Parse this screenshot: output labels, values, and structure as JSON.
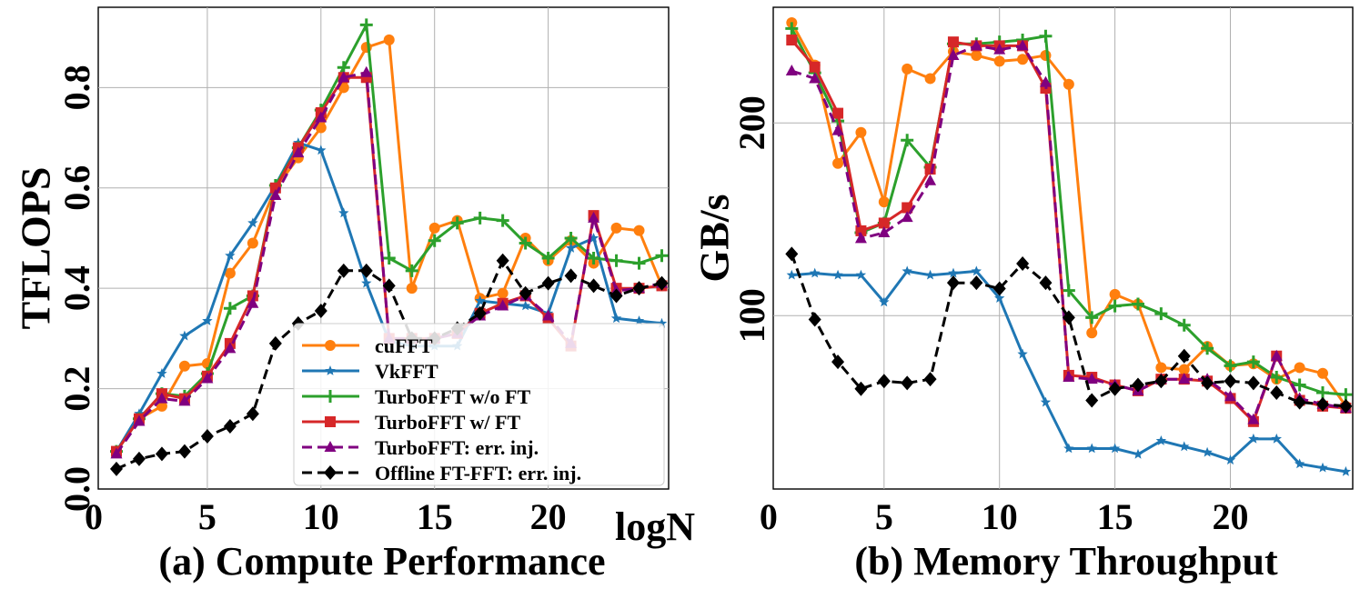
{
  "chart_data": [
    {
      "type": "line",
      "panel": "a",
      "caption": "(a) Compute Performance",
      "xlabel": "logN",
      "ylabel": "TFLOPS",
      "xlim": [
        0.2,
        25.3
      ],
      "ylim": [
        0.0,
        0.96
      ],
      "xticks": [
        0,
        5,
        10,
        15,
        20
      ],
      "yticks": [
        0.0,
        0.2,
        0.4,
        0.6,
        0.8
      ],
      "ytick_labels": [
        "0.0",
        "0.2",
        "0.4",
        "0.6",
        "0.8"
      ],
      "grid": true,
      "legend_position": "lower-right",
      "x": [
        1,
        2,
        3,
        4,
        5,
        6,
        7,
        8,
        9,
        10,
        11,
        12,
        13,
        14,
        15,
        16,
        17,
        18,
        19,
        20,
        21,
        22,
        23,
        24,
        25
      ],
      "series": [
        {
          "name": "cuFFT",
          "key": "cufft",
          "values": [
            0.075,
            0.14,
            0.165,
            0.245,
            0.25,
            0.43,
            0.49,
            0.6,
            0.66,
            0.72,
            0.8,
            0.88,
            0.895,
            0.4,
            0.52,
            0.535,
            0.38,
            0.39,
            0.5,
            0.455,
            0.495,
            0.45,
            0.52,
            0.515,
            0.405
          ]
        },
        {
          "name": "VkFFT",
          "key": "vkfft",
          "values": [
            0.075,
            0.15,
            0.23,
            0.305,
            0.335,
            0.465,
            0.53,
            0.605,
            0.69,
            0.675,
            0.55,
            0.41,
            0.295,
            0.285,
            0.285,
            0.285,
            0.375,
            0.37,
            0.365,
            0.35,
            0.48,
            0.5,
            0.34,
            0.335,
            0.33
          ]
        },
        {
          "name": "TurboFFT w/o FT",
          "key": "turbo_noft",
          "values": [
            0.075,
            0.14,
            0.19,
            0.185,
            0.23,
            0.36,
            0.385,
            0.605,
            0.68,
            0.755,
            0.84,
            0.925,
            0.46,
            0.435,
            0.495,
            0.53,
            0.54,
            0.535,
            0.49,
            0.46,
            0.5,
            0.46,
            0.455,
            0.45,
            0.465
          ]
        },
        {
          "name": "TurboFFT w/ FT",
          "key": "turbo_ft",
          "values": [
            0.075,
            0.14,
            0.19,
            0.18,
            0.225,
            0.29,
            0.385,
            0.6,
            0.68,
            0.75,
            0.82,
            0.82,
            0.3,
            0.3,
            0.3,
            0.31,
            0.35,
            0.37,
            0.385,
            0.34,
            0.285,
            0.545,
            0.4,
            0.4,
            0.405
          ]
        },
        {
          "name": "TurboFFT: err. inj.",
          "key": "turbo_inj",
          "values": [
            0.07,
            0.135,
            0.18,
            0.175,
            0.22,
            0.28,
            0.37,
            0.585,
            0.67,
            0.74,
            0.82,
            0.83,
            0.3,
            0.3,
            0.3,
            0.31,
            0.345,
            0.365,
            0.385,
            0.345,
            0.29,
            0.54,
            0.395,
            0.4,
            0.41
          ]
        },
        {
          "name": "Offline FT-FFT: err. inj.",
          "key": "offline_inj",
          "values": [
            0.04,
            0.06,
            0.07,
            0.075,
            0.105,
            0.125,
            0.15,
            0.29,
            0.33,
            0.355,
            0.435,
            0.435,
            0.405,
            0.3,
            0.3,
            0.32,
            0.35,
            0.455,
            0.39,
            0.41,
            0.425,
            0.405,
            0.385,
            0.4,
            0.41
          ]
        }
      ]
    },
    {
      "type": "line",
      "panel": "b",
      "caption": "(b) Memory Throughput",
      "xlabel": "",
      "ylabel": "GB/s",
      "xlim": [
        0.2,
        25.3
      ],
      "ylim": [
        10,
        260
      ],
      "xticks": [
        0,
        5,
        10,
        15,
        20
      ],
      "yticks": [
        100,
        200
      ],
      "ytick_labels": [
        "100",
        "200"
      ],
      "grid": true,
      "x": [
        1,
        2,
        3,
        4,
        5,
        6,
        7,
        8,
        9,
        10,
        11,
        12,
        13,
        14,
        15,
        16,
        17,
        18,
        19,
        20,
        21,
        22,
        23,
        24,
        25
      ],
      "series": [
        {
          "name": "cuFFT",
          "key": "cufft",
          "values": [
            252,
            230,
            179,
            195,
            159,
            228,
            223,
            237,
            235,
            232,
            233,
            235,
            220,
            91,
            111,
            106,
            73,
            72,
            84,
            74,
            75,
            67,
            73,
            70,
            53
          ]
        },
        {
          "name": "VkFFT",
          "key": "vkfft",
          "values": [
            121,
            122,
            121,
            121,
            107,
            123,
            121,
            122,
            123,
            109,
            80,
            55,
            31,
            31,
            31,
            28,
            35,
            32,
            29,
            25,
            36,
            36,
            23,
            21,
            19
          ]
        },
        {
          "name": "TurboFFT w/o FT",
          "key": "turbo_noft",
          "values": [
            249,
            226,
            201,
            143,
            148,
            191,
            177,
            241,
            241,
            242,
            243,
            245,
            113,
            99,
            105,
            106,
            101,
            95,
            83,
            74,
            76,
            68,
            64,
            60,
            59
          ]
        },
        {
          "name": "TurboFFT w/ FT",
          "key": "turbo_ft",
          "values": [
            243,
            229,
            205,
            144,
            148,
            156,
            176,
            242,
            240,
            240,
            240,
            218,
            69,
            68,
            64,
            61,
            67,
            67,
            66,
            57,
            45,
            79,
            56,
            53,
            52
          ]
        },
        {
          "name": "TurboFFT: err. inj.",
          "key": "turbo_inj",
          "values": [
            227,
            223,
            196,
            140,
            143,
            151,
            170,
            235,
            240,
            238,
            240,
            221,
            68,
            67,
            64,
            61,
            67,
            67,
            67,
            58,
            46,
            79,
            57,
            54,
            52
          ]
        },
        {
          "name": "Offline FT-FFT: err. inj.",
          "key": "offline_inj",
          "values": [
            132,
            98,
            76,
            62,
            66,
            65,
            67,
            117,
            117,
            114,
            127,
            117,
            99,
            56,
            62,
            64,
            66,
            79,
            65,
            66,
            65,
            60,
            55,
            54,
            53
          ]
        }
      ]
    }
  ],
  "styles": {
    "cufft": {
      "color": "#ff7f0e",
      "marker": "circle",
      "dashed": false
    },
    "vkfft": {
      "color": "#1f77b4",
      "marker": "star",
      "dashed": false
    },
    "turbo_noft": {
      "color": "#2ca02c",
      "marker": "plus",
      "dashed": false
    },
    "turbo_ft": {
      "color": "#d62728",
      "marker": "square",
      "dashed": false
    },
    "turbo_inj": {
      "color": "#800080",
      "marker": "triangle",
      "dashed": true
    },
    "offline_inj": {
      "color": "#000000",
      "marker": "diamond",
      "dashed": true
    }
  }
}
